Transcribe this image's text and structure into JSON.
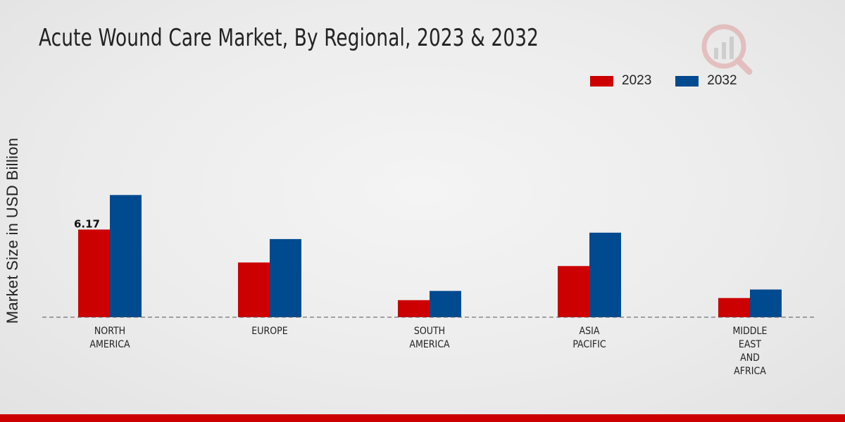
{
  "chart_data": {
    "type": "bar",
    "title": "Acute Wound Care Market, By Regional, 2023 & 2032",
    "xlabel": "",
    "ylabel": "Market Size in USD Billion",
    "categories": [
      "NORTH\nAMERICA",
      "EUROPE",
      "SOUTH\nAMERICA",
      "ASIA\nPACIFIC",
      "MIDDLE\nEAST\nAND\nAFRICA"
    ],
    "series": [
      {
        "name": "2023",
        "color": "#cc0000",
        "values": [
          6.17,
          3.85,
          1.2,
          3.6,
          1.35
        ]
      },
      {
        "name": "2032",
        "color": "#004a8f",
        "values": [
          8.6,
          5.5,
          1.85,
          5.95,
          1.95
        ]
      }
    ],
    "data_labels": [
      {
        "series": 0,
        "category": 0,
        "text": "6.17"
      }
    ],
    "ylim": [
      0,
      10
    ],
    "grid": false,
    "legend": "top-right",
    "baseline_style": "dashed"
  }
}
